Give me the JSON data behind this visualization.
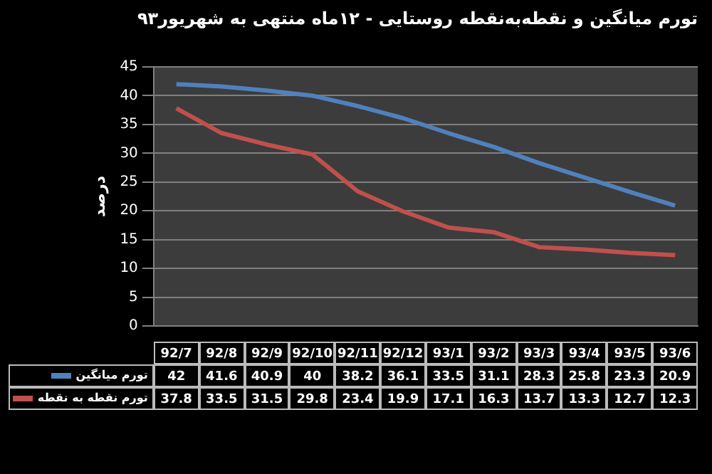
{
  "chart_data": {
    "type": "line",
    "title": "تورم میانگین و نقطه‌به‌نقطه روستایی - ۱۲ماه منتهی به شهریور۹۳",
    "ylabel": "درصد",
    "categories": [
      "92/7",
      "92/8",
      "92/9",
      "92/10",
      "92/11",
      "92/12",
      "93/1",
      "93/2",
      "93/3",
      "93/4",
      "93/5",
      "93/6"
    ],
    "series": [
      {
        "name": "تورم میانگین",
        "color": "#4f81bd",
        "values": [
          42,
          41.6,
          40.9,
          40,
          38.2,
          36.1,
          33.5,
          31.1,
          28.3,
          25.8,
          23.3,
          20.9
        ]
      },
      {
        "name": "تورم نقطه به نقطه",
        "color": "#c0504d",
        "values": [
          37.8,
          33.5,
          31.5,
          29.8,
          23.4,
          19.9,
          17.1,
          16.3,
          13.7,
          13.3,
          12.7,
          12.3
        ]
      }
    ],
    "ylim": [
      0,
      45
    ],
    "yticks": [
      0,
      5,
      10,
      15,
      20,
      25,
      30,
      35,
      40,
      45
    ],
    "grid": "y",
    "legend": "bottom",
    "data_labels": true,
    "marker": "none",
    "line_style": "solid"
  }
}
